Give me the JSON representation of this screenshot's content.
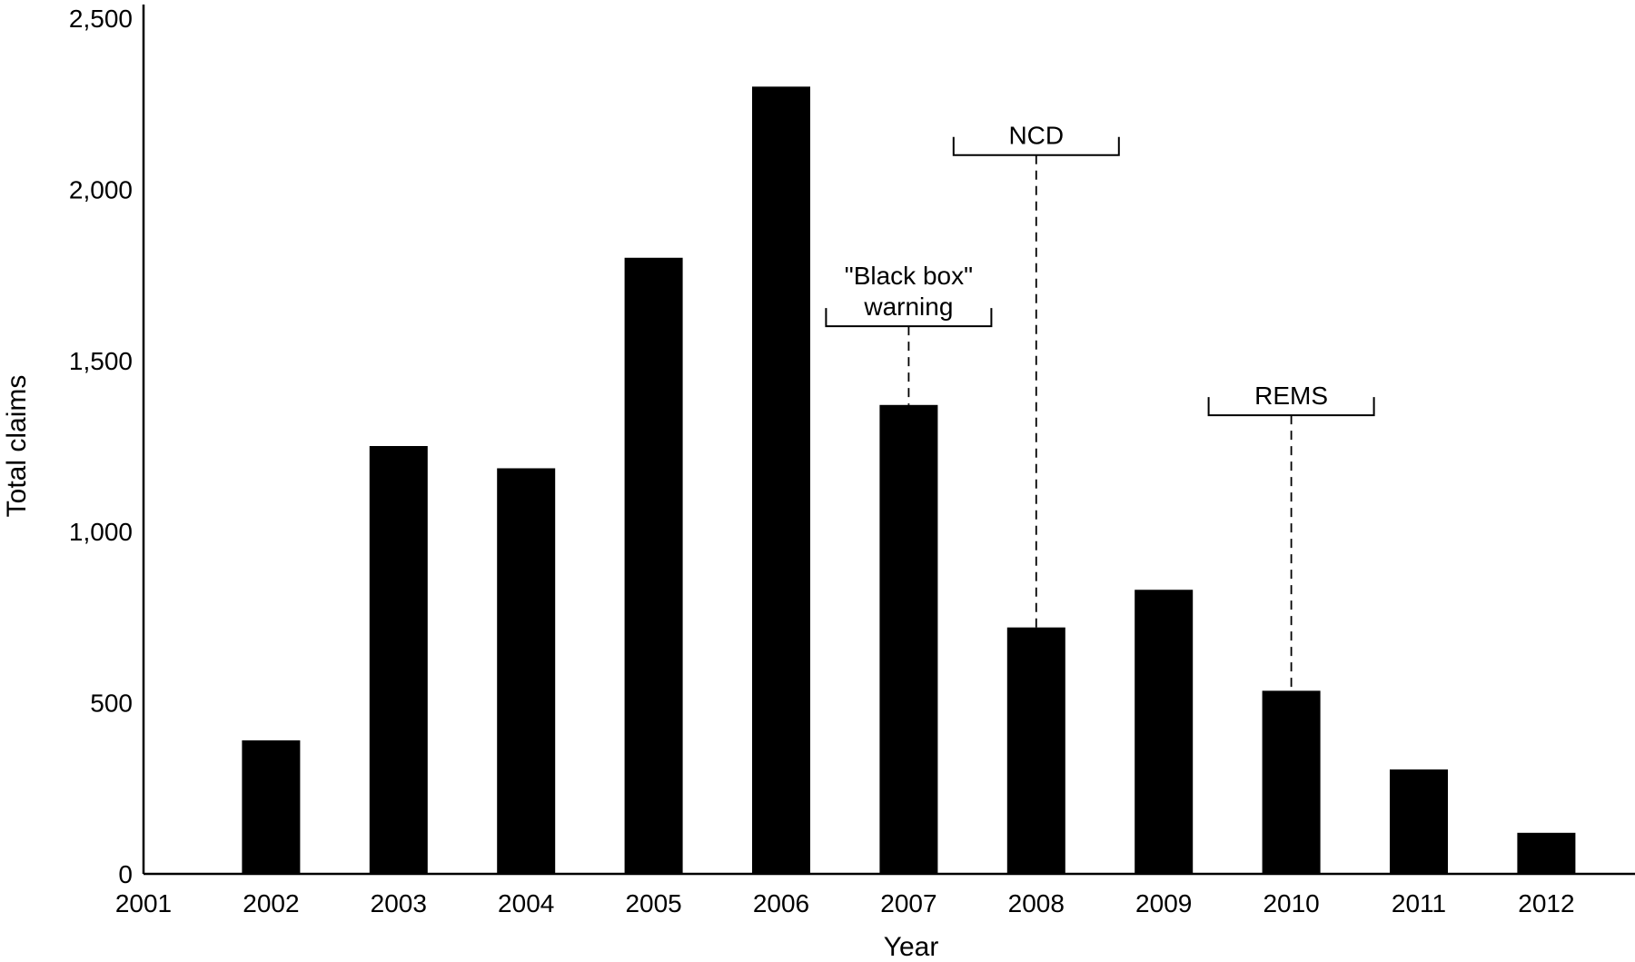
{
  "chart_data": {
    "type": "bar",
    "title": "",
    "xlabel": "Year",
    "ylabel": "Total claims",
    "categories": [
      "2001",
      "2002",
      "2003",
      "2004",
      "2005",
      "2006",
      "2007",
      "2008",
      "2009",
      "2010",
      "2011",
      "2012"
    ],
    "values": [
      0,
      390,
      1250,
      1185,
      1800,
      2300,
      1370,
      720,
      830,
      535,
      305,
      120
    ],
    "ylim": [
      0,
      2500
    ],
    "yticks": [
      0,
      500,
      1000,
      1500,
      2000,
      2500
    ],
    "ytick_labels": [
      "0",
      "500",
      "1,000",
      "1,500",
      "2,000",
      "2,500"
    ],
    "grid": false,
    "bar_color": "#000000",
    "annotations": [
      {
        "lines": [
          "\"Black box\"",
          "warning"
        ],
        "year": "2007",
        "target_value": 1370,
        "bracket_top_value": 1600
      },
      {
        "lines": [
          "NCD"
        ],
        "year": "2008",
        "target_value": 720,
        "bracket_top_value": 2100
      },
      {
        "lines": [
          "REMS"
        ],
        "year": "2010",
        "target_value": 535,
        "bracket_top_value": 1340
      }
    ]
  }
}
